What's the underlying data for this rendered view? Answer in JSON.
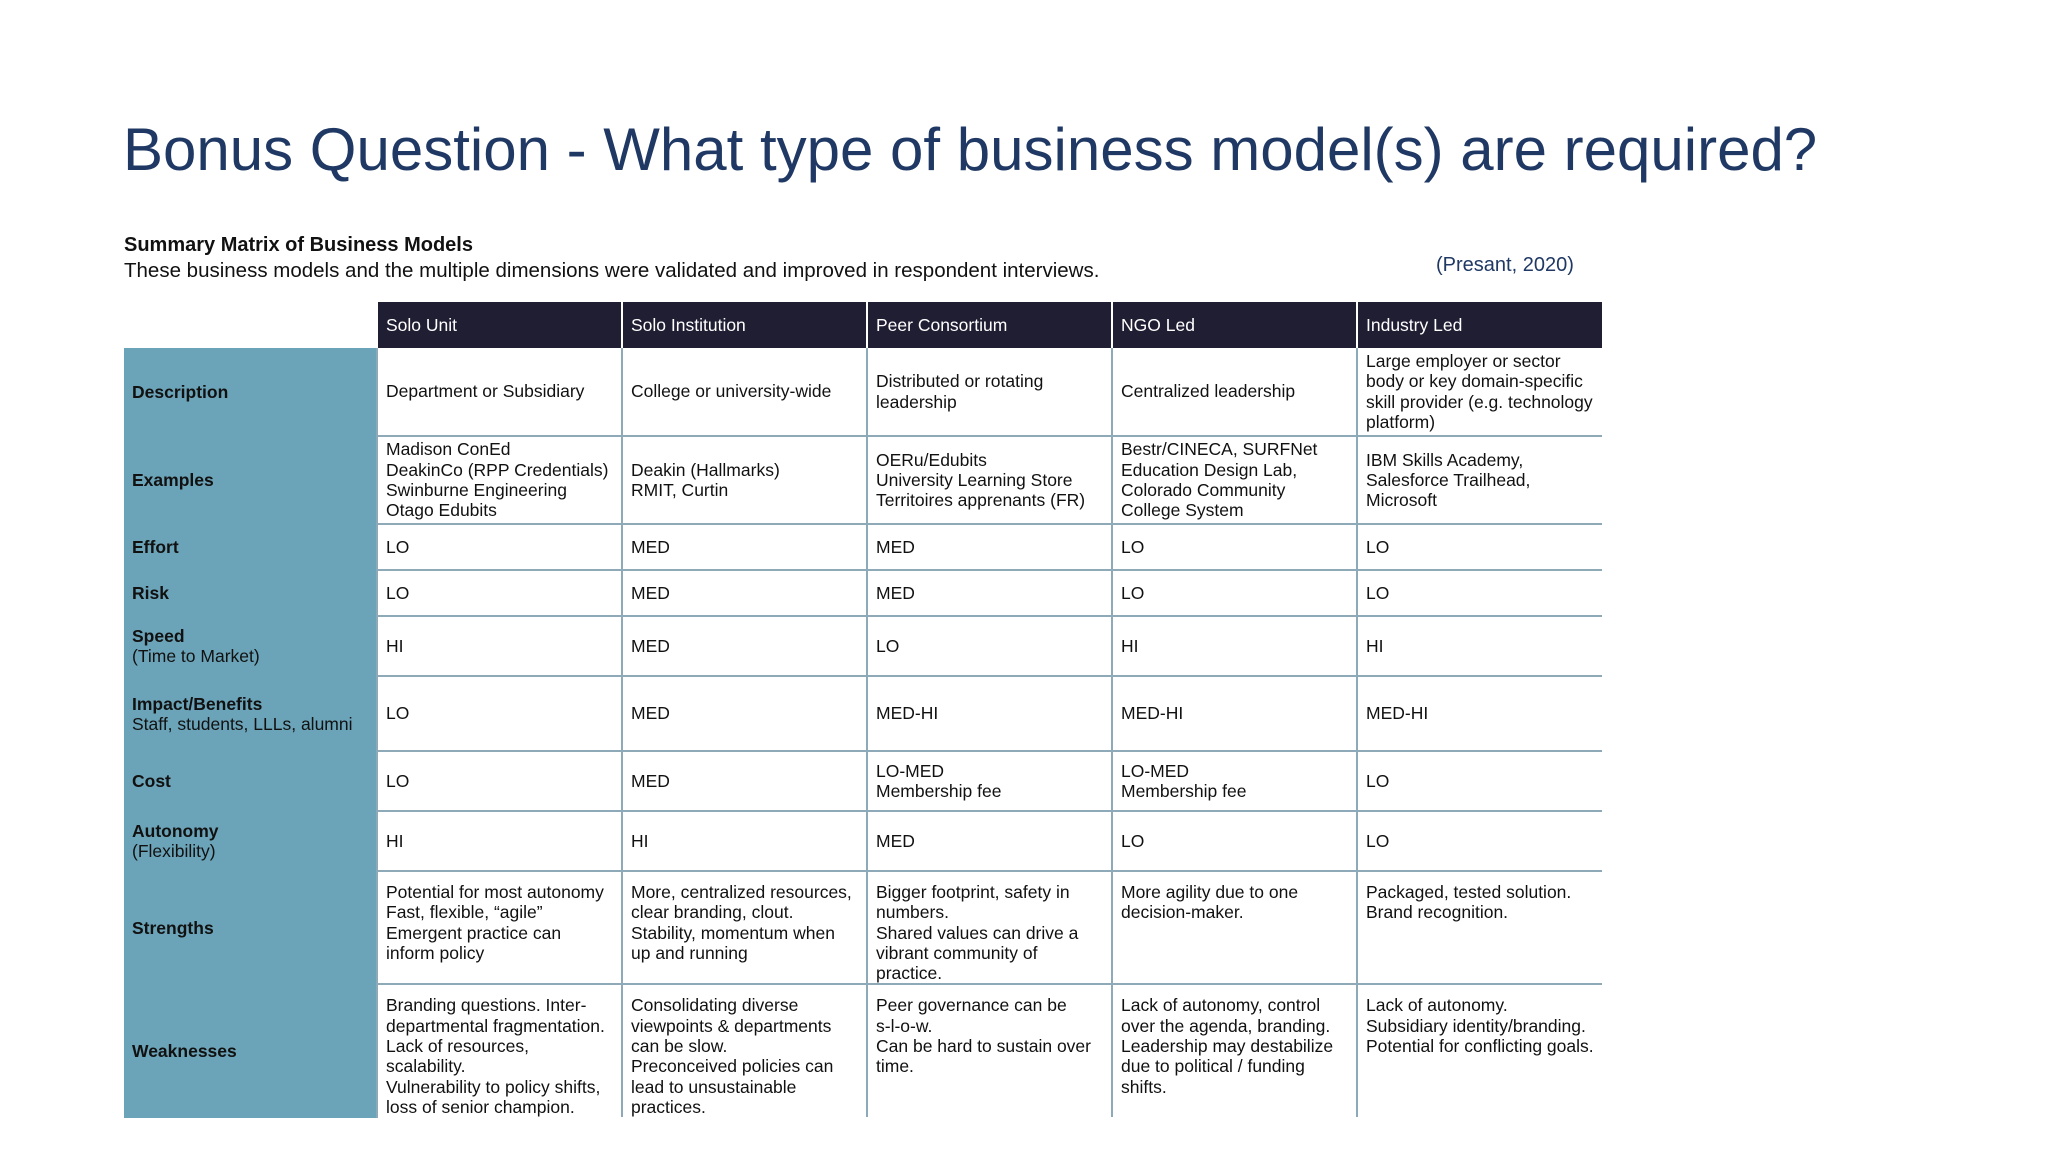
{
  "slide": {
    "title": "Bonus Question - What type of business model(s) are required?"
  },
  "matrix": {
    "heading": "Summary Matrix of Business Models",
    "subheading": "These business models and the multiple dimensions were validated and improved in respondent interviews.",
    "citation": "(Presant, 2020)",
    "columns": [
      "Solo Unit",
      "Solo Institution",
      "Peer Consortium",
      "NGO Led",
      "Industry Led"
    ],
    "rows": [
      {
        "label": "Description",
        "sublabel": "",
        "cells": [
          "Department or Subsidiary",
          "College or university-wide",
          "Distributed or rotating\nleadership",
          "Centralized leadership",
          "Large employer or sector\nbody or key domain-specific\nskill provider (e.g. technology\nplatform)"
        ]
      },
      {
        "label": "Examples",
        "sublabel": "",
        "cells": [
          "Madison ConEd\nDeakinCo (RPP Credentials)\nSwinburne Engineering\nOtago Edubits",
          "Deakin (Hallmarks)\nRMIT, Curtin",
          "OERu/Edubits\nUniversity Learning Store\nTerritoires apprenants (FR)",
          "Bestr/CINECA, SURFNet\nEducation Design Lab,\nColorado Community\nCollege System",
          "IBM Skills Academy,\nSalesforce Trailhead,\nMicrosoft"
        ]
      },
      {
        "label": "Effort",
        "sublabel": "",
        "cells": [
          "LO",
          "MED",
          "MED",
          "LO",
          "LO"
        ]
      },
      {
        "label": "Risk",
        "sublabel": "",
        "cells": [
          "LO",
          "MED",
          "MED",
          "LO",
          "LO"
        ]
      },
      {
        "label": "Speed",
        "sublabel": "(Time to Market)",
        "cells": [
          "HI",
          "MED",
          "LO",
          "HI",
          "HI"
        ]
      },
      {
        "label": "Impact/Benefits",
        "sublabel": "Staff, students, LLLs, alumni",
        "cells": [
          "LO",
          "MED",
          "MED-HI",
          "MED-HI",
          "MED-HI"
        ]
      },
      {
        "label": "Cost",
        "sublabel": "",
        "cells": [
          "LO",
          "MED",
          "LO-MED\nMembership fee",
          "LO-MED\nMembership fee",
          "LO"
        ]
      },
      {
        "label": "Autonomy",
        "sublabel": "(Flexibility)",
        "cells": [
          "HI",
          "HI",
          "MED",
          "LO",
          "LO"
        ]
      },
      {
        "label": "Strengths",
        "sublabel": "",
        "cells": [
          "Potential for most autonomy\nFast, flexible, “agile”\nEmergent practice can\ninform policy",
          "More, centralized resources,\nclear branding, clout.\nStability, momentum when\nup and running",
          "Bigger footprint, safety in\nnumbers.\nShared values can drive a\nvibrant community of\npractice.",
          "More agility due to one\ndecision-maker.",
          "Packaged, tested solution.\nBrand recognition."
        ]
      },
      {
        "label": "Weaknesses",
        "sublabel": "",
        "cells": [
          "Branding questions. Inter-\ndepartmental fragmentation.\nLack of resources,\nscalability.\nVulnerability to policy shifts,\nloss of senior champion.",
          "Consolidating diverse\nviewpoints & departments\ncan be slow.\nPreconceived policies can\nlead to unsustainable\npractices.",
          "Peer governance can be\ns-l-o-w.\nCan be hard to sustain over\ntime.",
          "Lack of autonomy, control\nover the agenda, branding.\nLeadership may destabilize\ndue to political / funding\nshifts.",
          "Lack of autonomy.\nSubsidiary identity/branding.\nPotential for conflicting goals."
        ]
      }
    ]
  }
}
